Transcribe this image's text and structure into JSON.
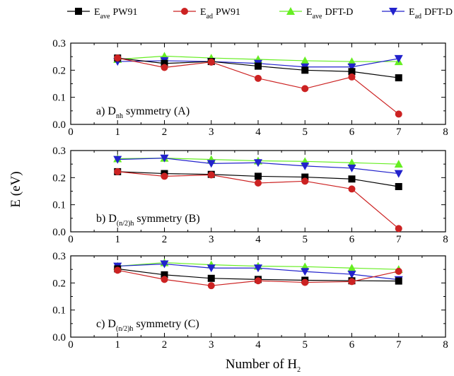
{
  "chart_data": {
    "type": "line",
    "xlabel": "Number of H",
    "xlabel_sub": "2",
    "ylabel": "E (eV)",
    "xlim": [
      0,
      8
    ],
    "ylim": [
      0.0,
      0.3
    ],
    "x_ticks": [
      "0",
      "1",
      "2",
      "3",
      "4",
      "5",
      "6",
      "7",
      "8"
    ],
    "y_ticks": [
      "0.0",
      "0.1",
      "0.2",
      "0.3"
    ],
    "legend_position": "top",
    "legend": [
      {
        "name_main": "E",
        "name_sub": "ave",
        "name_rest": "PW91",
        "color": "#000000",
        "marker": "square"
      },
      {
        "name_main": "E",
        "name_sub": "ad",
        "name_rest": "PW91",
        "color": "#cc2222",
        "marker": "circle"
      },
      {
        "name_main": "E",
        "name_sub": "ave",
        "name_rest": "DFT-D",
        "color": "#66ee22",
        "marker": "triangle-up"
      },
      {
        "name_main": "E",
        "name_sub": "ad",
        "name_rest": "DFT-D",
        "color": "#2222cc",
        "marker": "triangle-down"
      }
    ],
    "panels": [
      {
        "label_pre": "a) D",
        "label_sub": "nh",
        "label_post": " symmetry (A)",
        "x": [
          1,
          2,
          3,
          4,
          5,
          6,
          7
        ],
        "series": [
          {
            "values": [
              0.245,
              0.225,
              0.232,
              0.215,
              0.2,
              0.195,
              0.172
            ]
          },
          {
            "values": [
              0.245,
              0.21,
              0.23,
              0.17,
              0.132,
              0.175,
              0.038
            ]
          },
          {
            "values": [
              0.24,
              0.252,
              0.245,
              0.24,
              0.235,
              0.232,
              0.232
            ]
          },
          {
            "values": [
              0.232,
              0.235,
              0.232,
              0.225,
              0.212,
              0.212,
              0.243
            ]
          }
        ]
      },
      {
        "label_pre": "b) D",
        "label_sub": "(n/2)h",
        "label_post": " symmetry (B)",
        "x": [
          1,
          2,
          3,
          4,
          5,
          6,
          7
        ],
        "series": [
          {
            "values": [
              0.222,
              0.215,
              0.212,
              0.205,
              0.202,
              0.195,
              0.167
            ]
          },
          {
            "values": [
              0.222,
              0.205,
              0.21,
              0.18,
              0.187,
              0.158,
              0.012
            ]
          },
          {
            "values": [
              0.27,
              0.272,
              0.267,
              0.262,
              0.26,
              0.255,
              0.25
            ]
          },
          {
            "values": [
              0.267,
              0.272,
              0.252,
              0.255,
              0.243,
              0.235,
              0.215
            ]
          }
        ]
      },
      {
        "label_pre": "c) D",
        "label_sub": "(n/2)h",
        "label_post": " symmetry (C)",
        "x": [
          1,
          2,
          3,
          4,
          5,
          6,
          7
        ],
        "series": [
          {
            "values": [
              0.252,
              0.23,
              0.217,
              0.213,
              0.21,
              0.208,
              0.207
            ]
          },
          {
            "values": [
              0.247,
              0.213,
              0.19,
              0.208,
              0.202,
              0.205,
              0.243
            ]
          },
          {
            "values": [
              0.262,
              0.275,
              0.267,
              0.262,
              0.26,
              0.255,
              0.25
            ]
          },
          {
            "values": [
              0.262,
              0.27,
              0.255,
              0.255,
              0.242,
              0.232,
              0.212
            ]
          }
        ]
      }
    ]
  }
}
